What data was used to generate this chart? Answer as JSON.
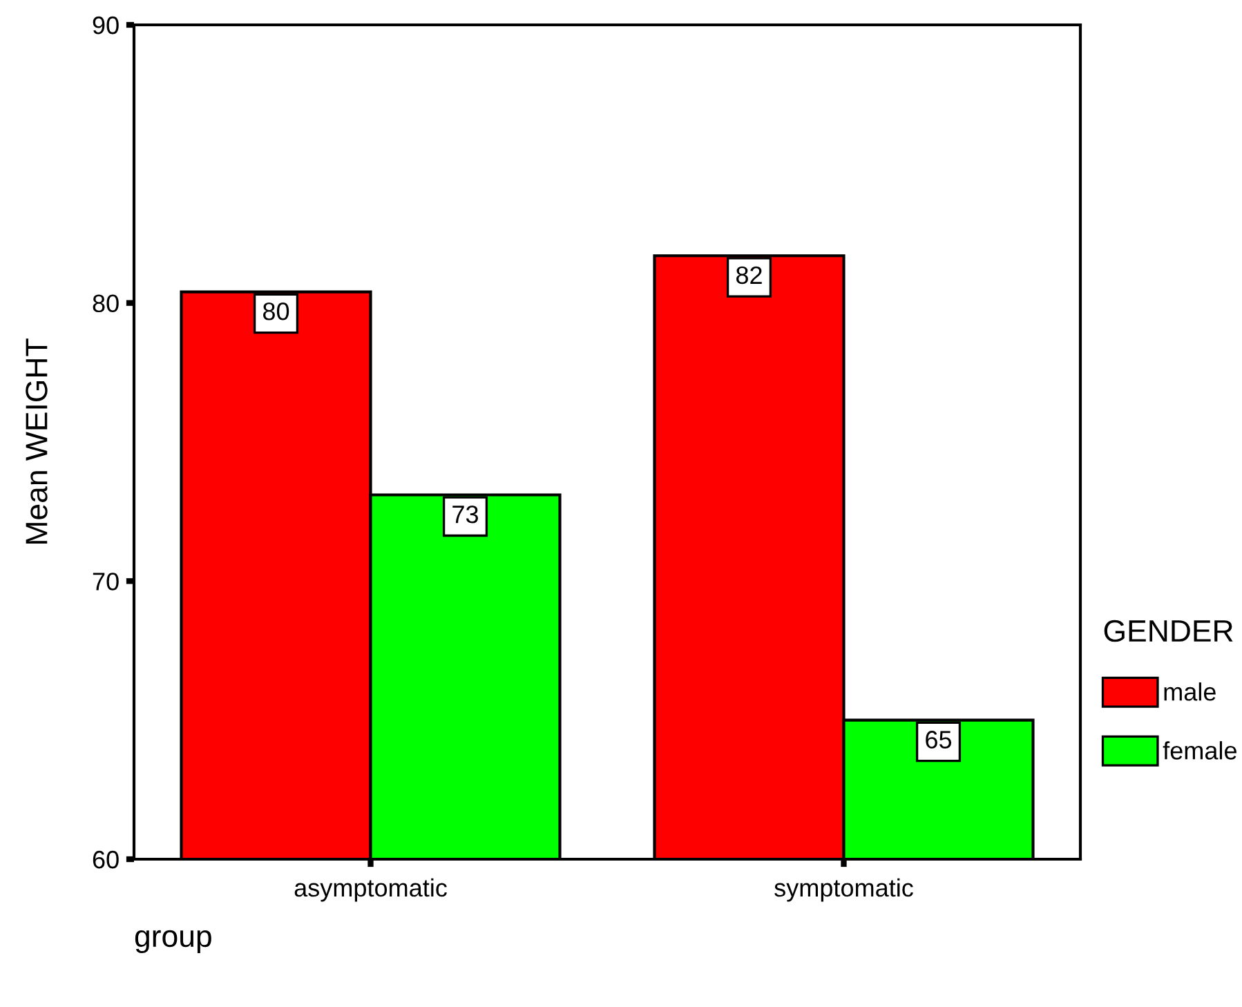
{
  "chart_data": {
    "type": "bar",
    "xlabel": "group",
    "ylabel": "Mean WEIGHT",
    "legend_title": "GENDER",
    "categories": [
      "asymptomatic",
      "symptomatic"
    ],
    "series": [
      {
        "name": "male",
        "color": "#ff0000",
        "values": [
          80.4,
          81.7
        ],
        "value_labels": [
          "80",
          "82"
        ]
      },
      {
        "name": "female",
        "color": "#00ff00",
        "values": [
          73.1,
          65.0
        ],
        "value_labels": [
          "73",
          "65"
        ]
      }
    ],
    "ylim": [
      60,
      90
    ],
    "yticks": [
      60,
      70,
      80,
      90
    ],
    "grid": false,
    "legend": "right"
  }
}
